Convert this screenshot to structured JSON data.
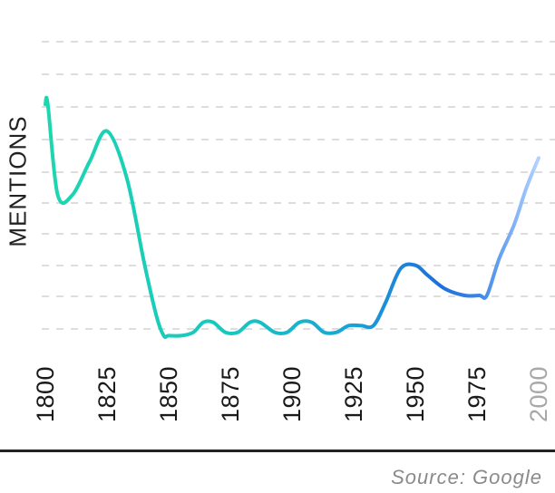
{
  "chart_data": {
    "type": "line",
    "title": "",
    "xlabel": "",
    "ylabel": "MENTIONS",
    "x_ticks": [
      1800,
      1825,
      1850,
      1875,
      1900,
      1925,
      1950,
      1975,
      2000
    ],
    "x_tick_labels": [
      "1800",
      "1825",
      "1850",
      "1875",
      "1900",
      "1925",
      "1950",
      "1975",
      "2000"
    ],
    "xlim": [
      1800,
      2000
    ],
    "grid": "horizontal dashed",
    "series": [
      {
        "x": [
          1800,
          1801,
          1805,
          1811,
          1818,
          1825,
          1833,
          1840,
          1845,
          1848,
          1850,
          1855,
          1860,
          1864,
          1868,
          1873,
          1878,
          1883,
          1887,
          1893,
          1898,
          1903,
          1908,
          1913,
          1918,
          1923,
          1928,
          1933,
          1938,
          1944,
          1950,
          1955,
          1962,
          1970,
          1976,
          1979,
          1984,
          1990,
          1995,
          2000
        ],
        "y": [
          77,
          77,
          50,
          50,
          60,
          69,
          55,
          30,
          14,
          8,
          8,
          8,
          9,
          12,
          12,
          9,
          9,
          12,
          12,
          9,
          9,
          12,
          12,
          9,
          9,
          11,
          11,
          11,
          18,
          28,
          29,
          26,
          22,
          20,
          20,
          20,
          31,
          41,
          52,
          61
        ]
      }
    ],
    "colors": {
      "line_start": "#1dd6b0",
      "line_mid": "#1aa3d6",
      "line_late": "#1d6fdc",
      "line_end": "#9cc3ff",
      "gridline": "#dddddd",
      "faded_tick": "#a8a8a8"
    },
    "source": "Source: Google"
  }
}
